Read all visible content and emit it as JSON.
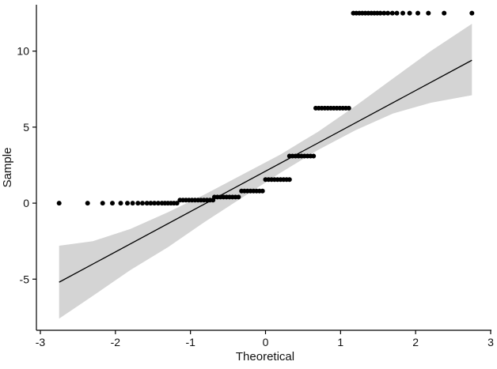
{
  "chart_data": {
    "type": "scatter",
    "subtype": "qq-plot",
    "title": "",
    "xlabel": "Theoretical",
    "ylabel": "Sample",
    "xlim": [
      -3,
      3
    ],
    "ylim": [
      -8,
      13
    ],
    "x_ticks": [
      -3,
      -2,
      -1,
      0,
      1,
      2,
      3
    ],
    "x_tick_labels": [
      "-3",
      "-2",
      "-1",
      "0",
      "1",
      "2",
      "3"
    ],
    "y_ticks": [
      -5,
      0,
      5,
      10
    ],
    "y_tick_labels": [
      "-5",
      "0",
      "5",
      "10"
    ],
    "grid": false,
    "legend": "none",
    "colors": {
      "points": "#000000",
      "line": "#000000",
      "band": "#d4d4d4",
      "axis": "#000000"
    },
    "reference_line": {
      "x": [
        -2.75,
        2.75
      ],
      "y": [
        -5.2,
        9.4
      ]
    },
    "confidence_band": {
      "x": [
        -2.75,
        -2.3,
        -1.8,
        -1.3,
        -0.8,
        -0.3,
        0.2,
        0.7,
        1.2,
        1.7,
        2.2,
        2.75
      ],
      "upper": [
        -2.8,
        -2.5,
        -1.7,
        -0.6,
        0.6,
        1.9,
        3.2,
        4.7,
        6.4,
        8.2,
        10.0,
        11.8
      ],
      "lower": [
        -7.6,
        -6.1,
        -4.4,
        -2.9,
        -1.2,
        0.4,
        2.0,
        3.5,
        4.8,
        5.9,
        6.6,
        7.1
      ]
    },
    "points": [
      {
        "x": -2.75,
        "y": 0
      },
      {
        "x": -2.37,
        "y": 0
      },
      {
        "x": -2.17,
        "y": 0
      },
      {
        "x": -2.04,
        "y": 0
      },
      {
        "x": -1.93,
        "y": 0
      },
      {
        "x": -1.84,
        "y": 0
      },
      {
        "x": -1.77,
        "y": 0
      },
      {
        "x": -1.7,
        "y": 0
      },
      {
        "x": -1.64,
        "y": 0
      },
      {
        "x": -1.58,
        "y": 0
      },
      {
        "x": -1.53,
        "y": 0
      },
      {
        "x": -1.48,
        "y": 0
      },
      {
        "x": -1.43,
        "y": 0
      },
      {
        "x": -1.38,
        "y": 0
      },
      {
        "x": -1.34,
        "y": 0
      },
      {
        "x": -1.3,
        "y": 0
      },
      {
        "x": -1.26,
        "y": 0
      },
      {
        "x": -1.22,
        "y": 0
      },
      {
        "x": -1.18,
        "y": 0
      },
      {
        "x": -1.14,
        "y": 0.2
      },
      {
        "x": -1.1,
        "y": 0.2
      },
      {
        "x": -1.06,
        "y": 0.2
      },
      {
        "x": -1.02,
        "y": 0.2
      },
      {
        "x": -0.98,
        "y": 0.2
      },
      {
        "x": -0.94,
        "y": 0.2
      },
      {
        "x": -0.9,
        "y": 0.2
      },
      {
        "x": -0.86,
        "y": 0.2
      },
      {
        "x": -0.82,
        "y": 0.2
      },
      {
        "x": -0.78,
        "y": 0.2
      },
      {
        "x": -0.74,
        "y": 0.2
      },
      {
        "x": -0.7,
        "y": 0.2
      },
      {
        "x": -0.68,
        "y": 0.4
      },
      {
        "x": -0.64,
        "y": 0.4
      },
      {
        "x": -0.6,
        "y": 0.4
      },
      {
        "x": -0.56,
        "y": 0.4
      },
      {
        "x": -0.52,
        "y": 0.4
      },
      {
        "x": -0.48,
        "y": 0.4
      },
      {
        "x": -0.44,
        "y": 0.4
      },
      {
        "x": -0.4,
        "y": 0.4
      },
      {
        "x": -0.36,
        "y": 0.4
      },
      {
        "x": -0.32,
        "y": 0.8
      },
      {
        "x": -0.28,
        "y": 0.8
      },
      {
        "x": -0.24,
        "y": 0.8
      },
      {
        "x": -0.2,
        "y": 0.8
      },
      {
        "x": -0.16,
        "y": 0.8
      },
      {
        "x": -0.12,
        "y": 0.8
      },
      {
        "x": -0.08,
        "y": 0.8
      },
      {
        "x": -0.04,
        "y": 0.8
      },
      {
        "x": 0.0,
        "y": 1.55
      },
      {
        "x": 0.04,
        "y": 1.55
      },
      {
        "x": 0.08,
        "y": 1.55
      },
      {
        "x": 0.12,
        "y": 1.55
      },
      {
        "x": 0.16,
        "y": 1.55
      },
      {
        "x": 0.2,
        "y": 1.55
      },
      {
        "x": 0.24,
        "y": 1.55
      },
      {
        "x": 0.28,
        "y": 1.55
      },
      {
        "x": 0.32,
        "y": 1.55
      },
      {
        "x": 0.32,
        "y": 3.1
      },
      {
        "x": 0.36,
        "y": 3.1
      },
      {
        "x": 0.4,
        "y": 3.1
      },
      {
        "x": 0.44,
        "y": 3.1
      },
      {
        "x": 0.48,
        "y": 3.1
      },
      {
        "x": 0.52,
        "y": 3.1
      },
      {
        "x": 0.56,
        "y": 3.1
      },
      {
        "x": 0.6,
        "y": 3.1
      },
      {
        "x": 0.64,
        "y": 3.1
      },
      {
        "x": 0.67,
        "y": 6.25
      },
      {
        "x": 0.71,
        "y": 6.25
      },
      {
        "x": 0.75,
        "y": 6.25
      },
      {
        "x": 0.79,
        "y": 6.25
      },
      {
        "x": 0.83,
        "y": 6.25
      },
      {
        "x": 0.87,
        "y": 6.25
      },
      {
        "x": 0.91,
        "y": 6.25
      },
      {
        "x": 0.95,
        "y": 6.25
      },
      {
        "x": 0.99,
        "y": 6.25
      },
      {
        "x": 1.03,
        "y": 6.25
      },
      {
        "x": 1.07,
        "y": 6.25
      },
      {
        "x": 1.11,
        "y": 6.25
      },
      {
        "x": 1.17,
        "y": 12.5
      },
      {
        "x": 1.21,
        "y": 12.5
      },
      {
        "x": 1.25,
        "y": 12.5
      },
      {
        "x": 1.29,
        "y": 12.5
      },
      {
        "x": 1.33,
        "y": 12.5
      },
      {
        "x": 1.37,
        "y": 12.5
      },
      {
        "x": 1.41,
        "y": 12.5
      },
      {
        "x": 1.45,
        "y": 12.5
      },
      {
        "x": 1.49,
        "y": 12.5
      },
      {
        "x": 1.53,
        "y": 12.5
      },
      {
        "x": 1.58,
        "y": 12.5
      },
      {
        "x": 1.63,
        "y": 12.5
      },
      {
        "x": 1.69,
        "y": 12.5
      },
      {
        "x": 1.75,
        "y": 12.5
      },
      {
        "x": 1.83,
        "y": 12.5
      },
      {
        "x": 1.92,
        "y": 12.5
      },
      {
        "x": 2.03,
        "y": 12.5
      },
      {
        "x": 2.17,
        "y": 12.5
      },
      {
        "x": 2.38,
        "y": 12.5
      },
      {
        "x": 2.75,
        "y": 12.5
      }
    ]
  }
}
